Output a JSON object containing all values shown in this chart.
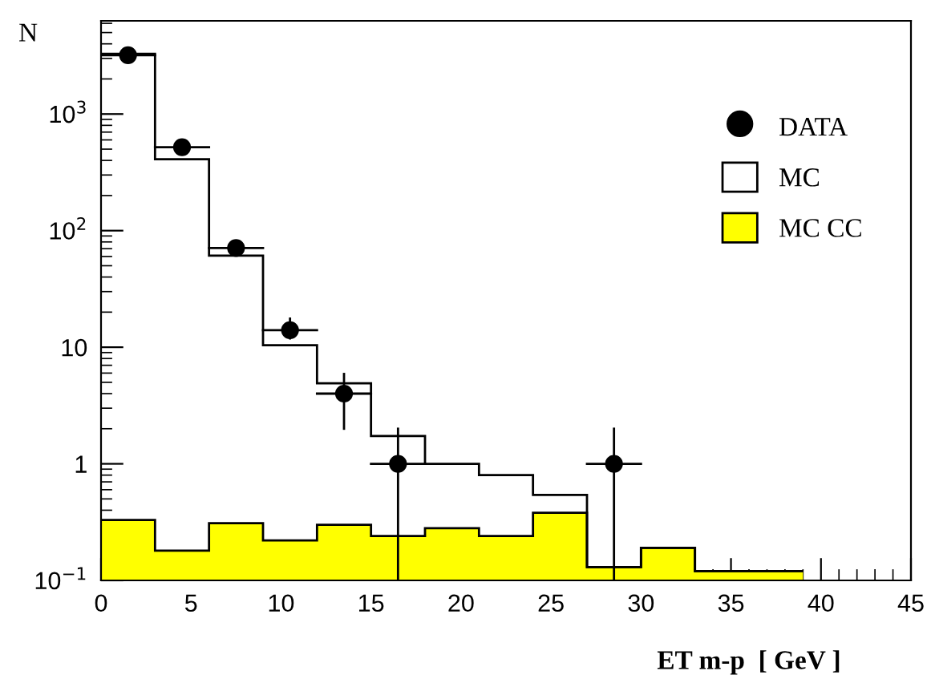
{
  "chart_data": {
    "type": "histogram",
    "bins": [
      0,
      3,
      6,
      9,
      12,
      15,
      18,
      21,
      24,
      27,
      30,
      33,
      36,
      39
    ],
    "series": [
      {
        "name": "MC CC",
        "color": "#ffff00",
        "values": [
          0.33,
          0.18,
          0.31,
          0.22,
          0.3,
          0.24,
          0.28,
          0.24,
          0.38,
          0.13,
          0.19,
          0.12,
          0.12
        ]
      },
      {
        "name": "MC",
        "color": "#000000",
        "values": [
          3280,
          410,
          61,
          10.4,
          4.9,
          1.73,
          1.0,
          0.8,
          0.54,
          0.13,
          0.19,
          0.12,
          0.12
        ]
      },
      {
        "name": "DATA",
        "type": "scatter",
        "color": "#000000",
        "x": [
          1.5,
          4.5,
          7.5,
          10.5,
          13.5,
          16.5,
          28.5
        ],
        "values": [
          3200,
          520,
          71,
          14,
          4,
          1,
          1
        ],
        "errors": [
          null,
          null,
          null,
          [
            11.9,
            17.6
          ],
          [
            2.0,
            5.9
          ],
          [
            0.1,
            2.0
          ],
          [
            0.1,
            2.0
          ]
        ],
        "xerrors": [
          1.5,
          1.5,
          1.5,
          1.5,
          1.5,
          1.5,
          1.5
        ]
      }
    ],
    "xlabel": "ET m-p  [ GeV ]",
    "ylabel": "N",
    "xlim": [
      0,
      45
    ],
    "ylim": [
      0.1,
      6300
    ],
    "xticks": [
      0,
      5,
      10,
      15,
      20,
      25,
      30,
      35,
      40,
      45
    ],
    "yticks": [
      {
        "value": 0.1,
        "label": "10$^{−1}$"
      },
      1,
      10,
      {
        "value": 100,
        "label": "10$^{2}$"
      },
      {
        "value": 1000,
        "label": "10$^{3}$"
      }
    ],
    "log": "y",
    "legend": "top right",
    "marker": "circle",
    "grid": false
  }
}
